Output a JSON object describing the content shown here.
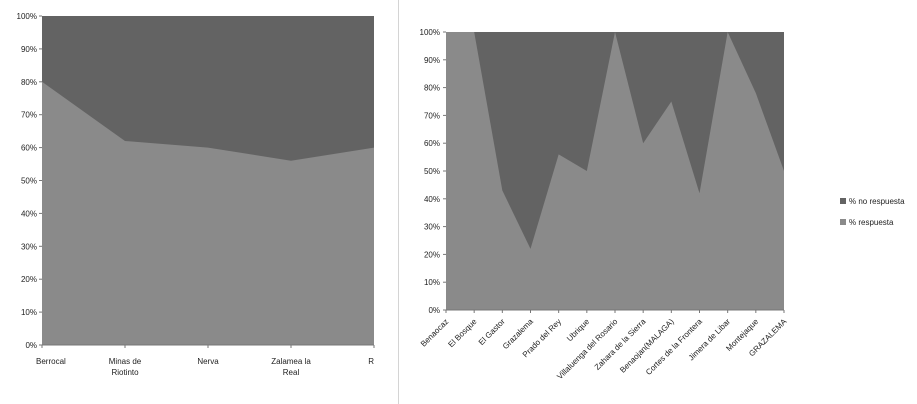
{
  "chart_data": [
    {
      "type": "area",
      "stacked_percent": true,
      "categories": [
        "Berrocal",
        "Minas de Riotinto",
        "Nerva",
        "Zalamea la Real",
        "R"
      ],
      "series": [
        {
          "name": "% respuesta",
          "values": [
            80,
            62,
            60,
            56,
            60
          ],
          "color": "#8a8a8a"
        },
        {
          "name": "% no respuesta",
          "values": [
            20,
            38,
            40,
            44,
            40
          ],
          "color": "#636363"
        }
      ],
      "y_ticks": [
        "0%",
        "10%",
        "20%",
        "30%",
        "40%",
        "50%",
        "60%",
        "70%",
        "80%",
        "90%",
        "100%"
      ],
      "ylim": [
        0,
        100
      ],
      "grid": false
    },
    {
      "type": "area",
      "stacked_percent": true,
      "categories": [
        "Benaocaz",
        "El Bosque",
        "El Gastor",
        "Grazalema",
        "Prado del Rey",
        "Ubrique",
        "Villaluenga del Rosario",
        "Zahara de la Sierra",
        "Benaojan(MALAGA)",
        "Cortes de la Frontera",
        "Jimera de Libar",
        "Montejaque",
        "GRAZALEMA"
      ],
      "series": [
        {
          "name": "% respuesta",
          "values": [
            100,
            100,
            43,
            22,
            56,
            50,
            100,
            60,
            75,
            42,
            100,
            78,
            50
          ],
          "color": "#8a8a8a"
        },
        {
          "name": "% no respuesta",
          "values": [
            0,
            0,
            57,
            78,
            44,
            50,
            0,
            40,
            25,
            58,
            0,
            22,
            50
          ],
          "color": "#636363"
        }
      ],
      "y_ticks": [
        "0%",
        "10%",
        "20%",
        "30%",
        "40%",
        "50%",
        "60%",
        "70%",
        "80%",
        "90%",
        "100%"
      ],
      "ylim": [
        0,
        100
      ],
      "grid": false,
      "legend": {
        "placement": "right",
        "items": [
          {
            "label": "% no respuesta",
            "color": "#636363"
          },
          {
            "label": "% respuesta",
            "color": "#8a8a8a"
          }
        ]
      }
    }
  ]
}
